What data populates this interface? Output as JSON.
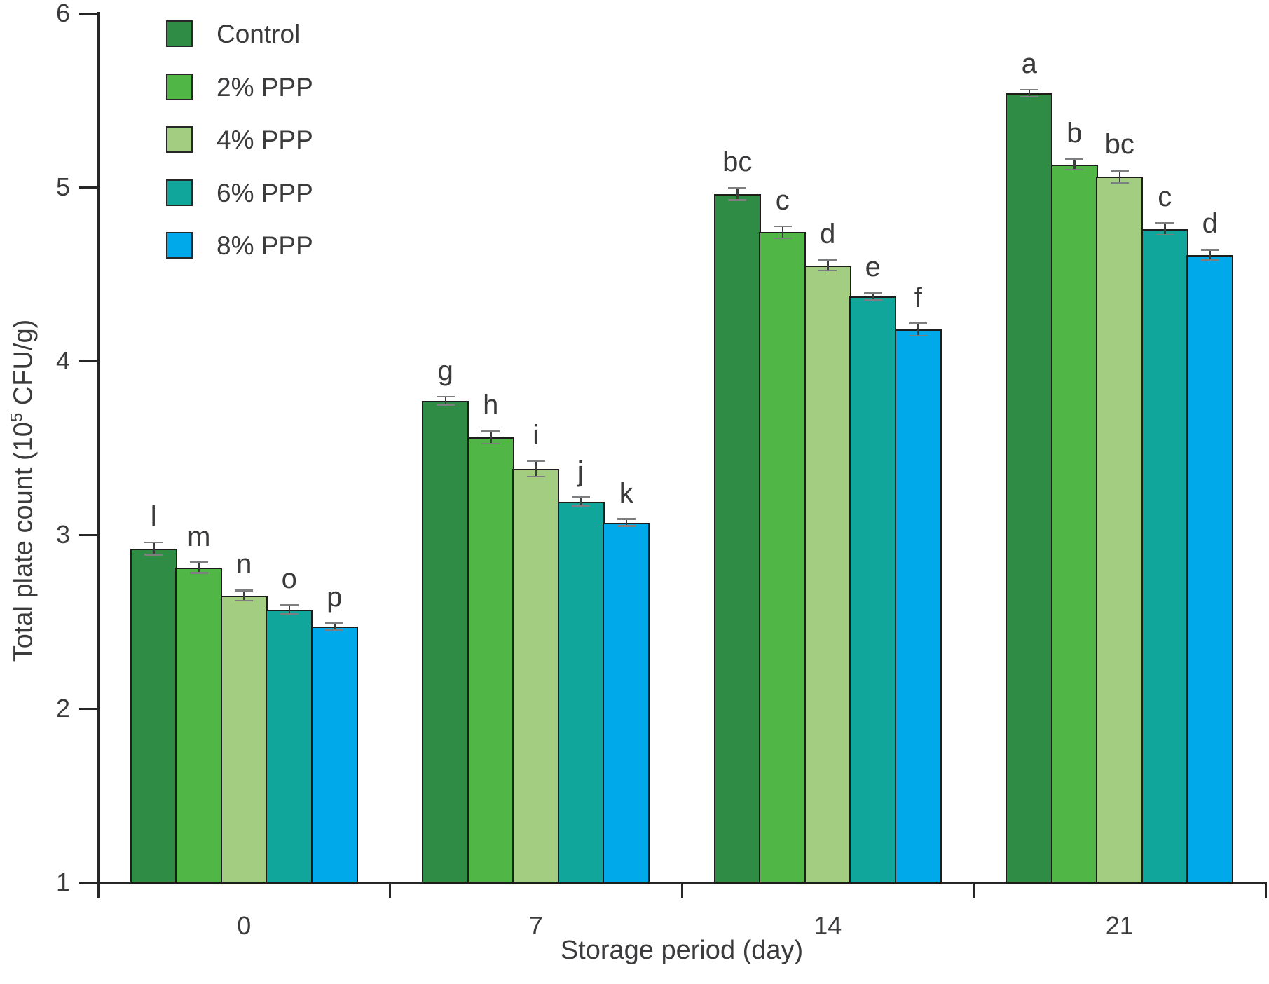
{
  "figure": {
    "background": "#ffffff",
    "kind": "grouped-bar-chart-with-error-bars"
  },
  "chart_data": {
    "type": "bar",
    "title": "",
    "xlabel": "Storage period (day)",
    "ylabel": {
      "prefix": "Total plate count (10",
      "superscript": "5",
      "suffix": " CFU/g)"
    },
    "categories": [
      "0",
      "7",
      "14",
      "21"
    ],
    "ylim": [
      1,
      6
    ],
    "yticks": [
      1,
      2,
      3,
      4,
      5,
      6
    ],
    "grid": false,
    "legend_position": "top-left",
    "series": [
      {
        "name": "Control",
        "color": "#2e8c45",
        "values": [
          2.92,
          3.77,
          4.96,
          5.54
        ],
        "errors": [
          0.035,
          0.025,
          0.035,
          0.02
        ],
        "sig_letters": [
          "l",
          "g",
          "bc",
          "a"
        ]
      },
      {
        "name": "2% PPP",
        "color": "#50b746",
        "values": [
          2.81,
          3.56,
          4.74,
          5.13
        ],
        "errors": [
          0.03,
          0.035,
          0.035,
          0.03
        ],
        "sig_letters": [
          "m",
          "h",
          "c",
          "b"
        ]
      },
      {
        "name": "4% PPP",
        "color": "#a3ce82",
        "values": [
          2.65,
          3.38,
          4.55,
          5.06
        ],
        "errors": [
          0.03,
          0.045,
          0.03,
          0.035
        ],
        "sig_letters": [
          "n",
          "i",
          "d",
          "bc"
        ]
      },
      {
        "name": "6% PPP",
        "color": "#10a69b",
        "values": [
          2.57,
          3.19,
          4.37,
          4.76
        ],
        "errors": [
          0.025,
          0.025,
          0.02,
          0.035
        ],
        "sig_letters": [
          "o",
          "j",
          "e",
          "c"
        ]
      },
      {
        "name": "8% PPP",
        "color": "#00a9ea",
        "values": [
          2.47,
          3.07,
          4.18,
          4.61
        ],
        "errors": [
          0.02,
          0.02,
          0.035,
          0.03
        ],
        "sig_letters": [
          "p",
          "k",
          "f",
          "d"
        ]
      }
    ]
  },
  "colors": {
    "axis": "#262626",
    "text": "#3b3b3d",
    "bar_border": "#1d1d1b",
    "error_line": "#3c3d3f",
    "error_cap": "#7c7e80"
  }
}
